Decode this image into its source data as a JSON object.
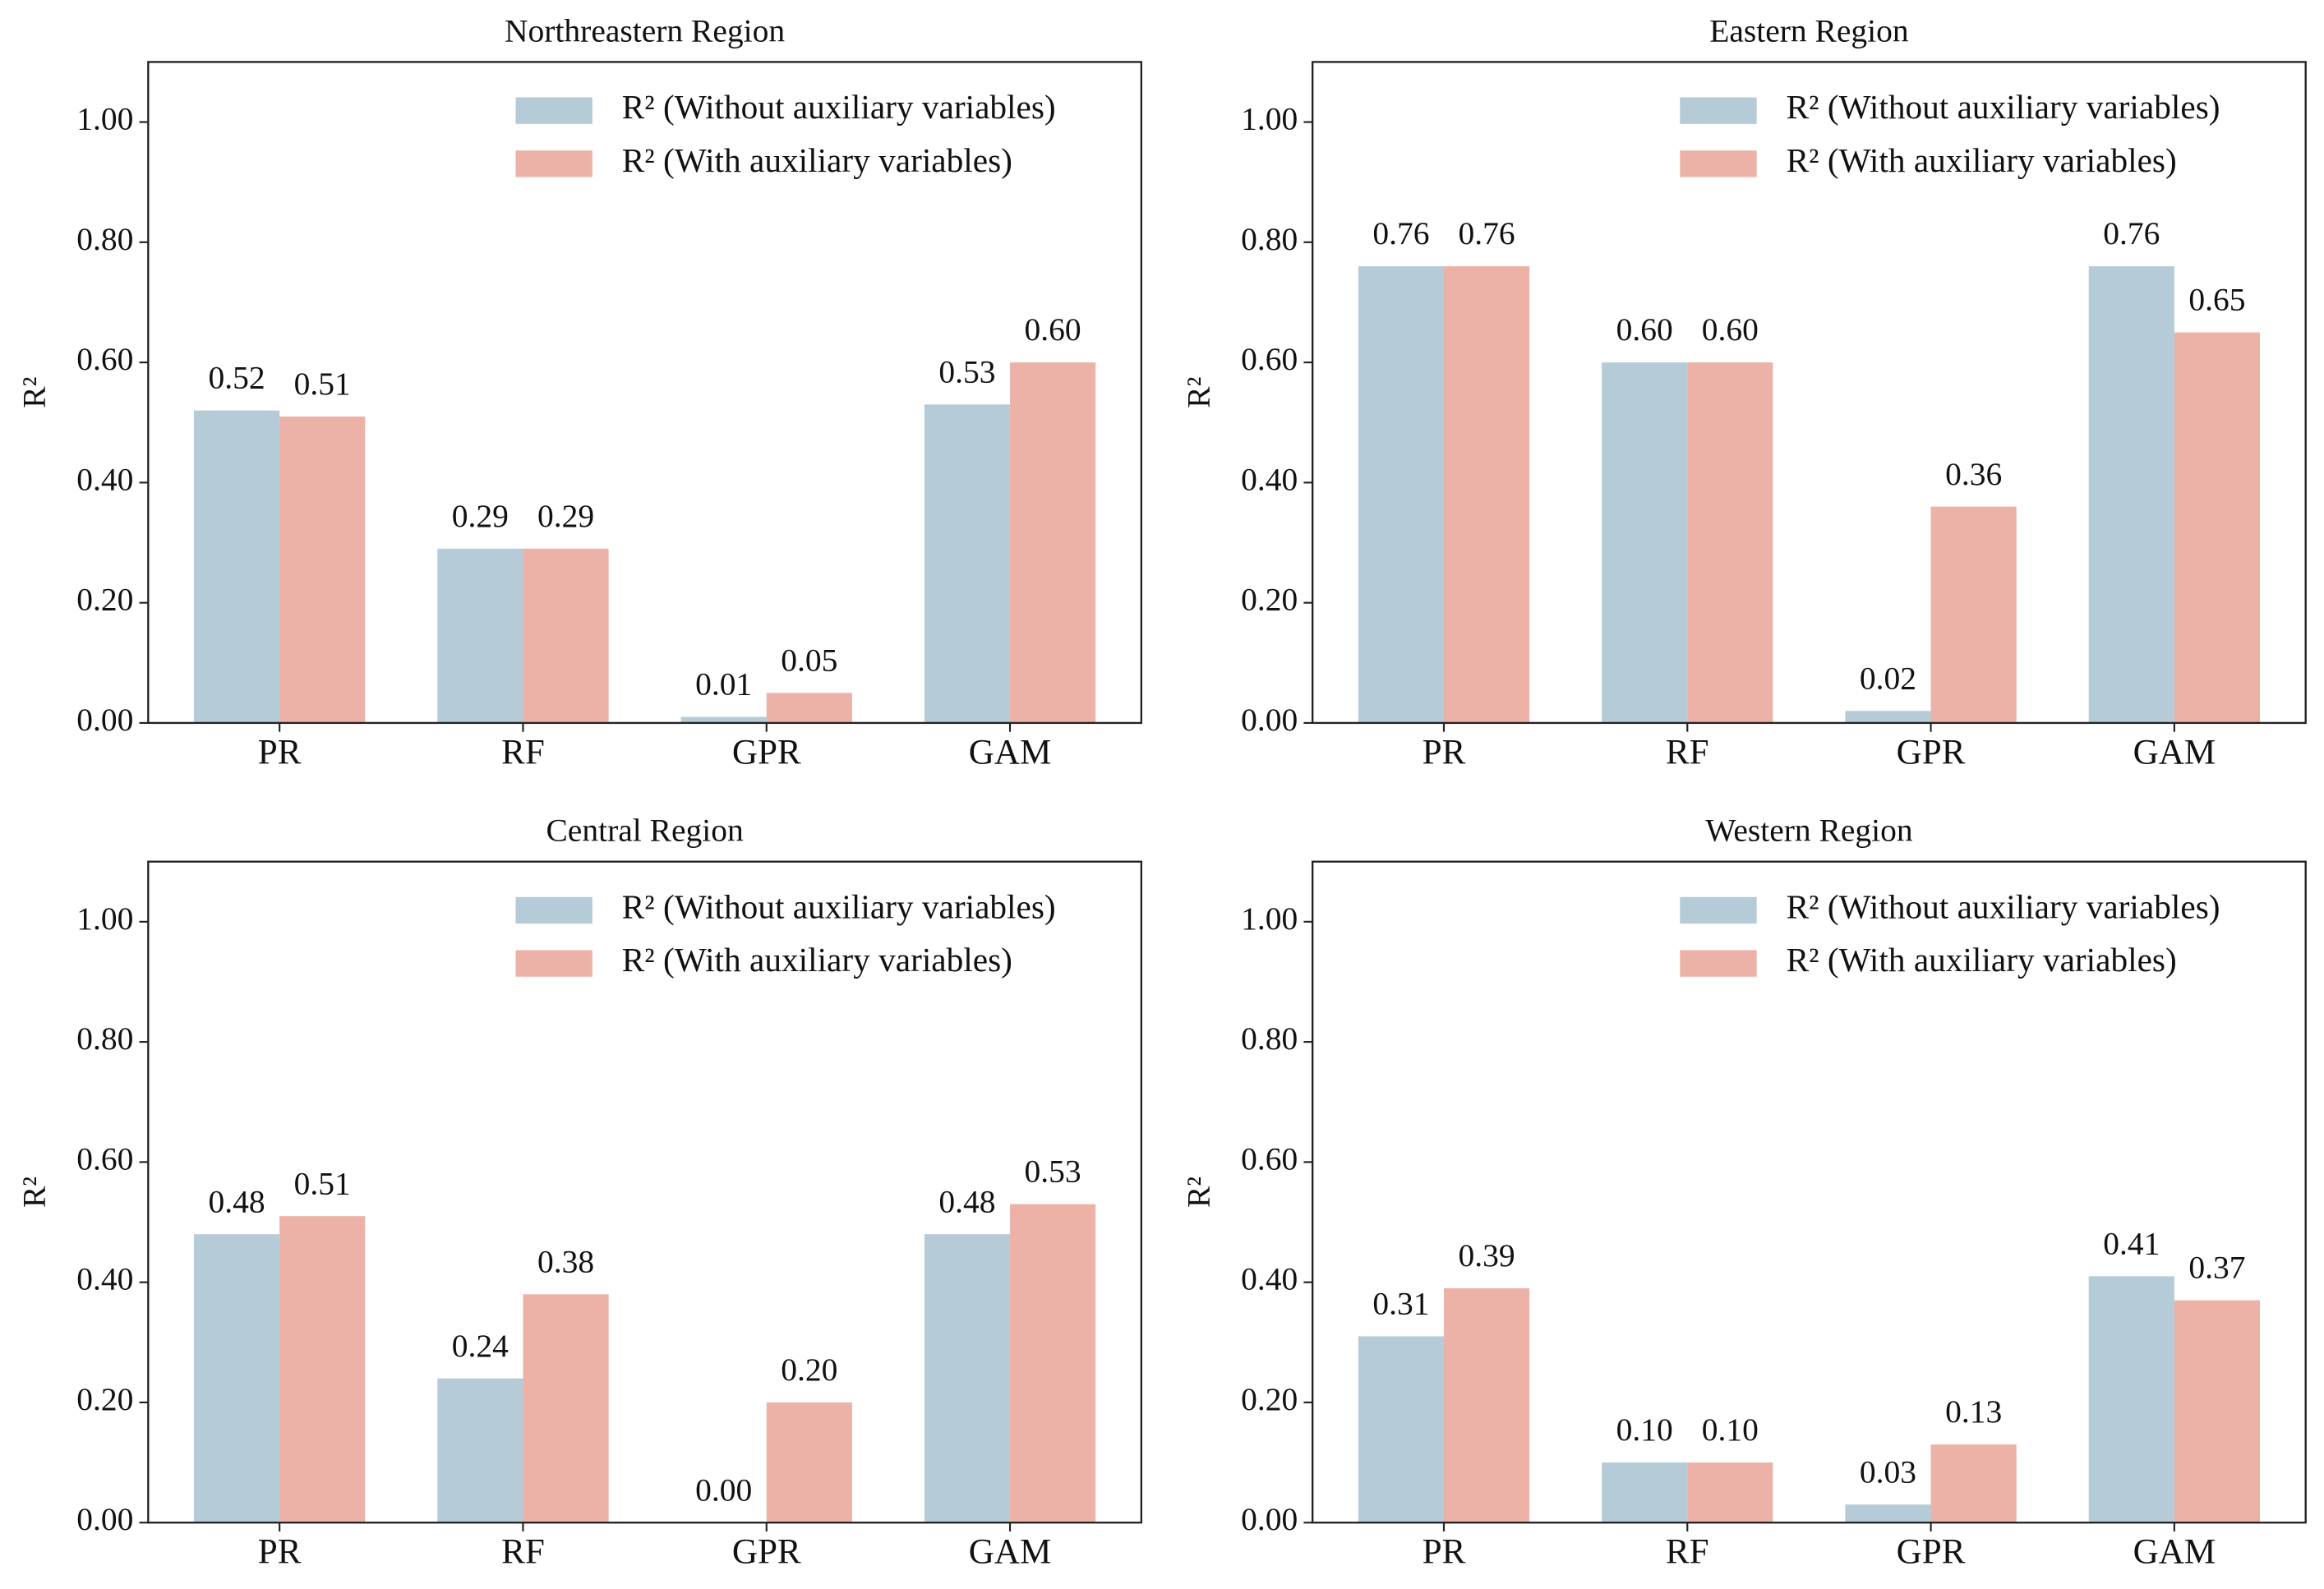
{
  "chart_data": [
    {
      "type": "bar",
      "title": "Northreastern Region",
      "y_label": "R²",
      "categories": [
        "PR",
        "RF",
        "GPR",
        "GAM"
      ],
      "series": [
        {
          "name": "R² (Without auxiliary variables)",
          "color": "#b5cbd7",
          "values": [
            0.52,
            0.29,
            0.01,
            0.53
          ],
          "value_labels": [
            "0.52",
            "0.29",
            "0.01",
            "0.53"
          ]
        },
        {
          "name": "R² (With auxiliary variables)",
          "color": "#ecb2a8",
          "values": [
            0.51,
            0.29,
            0.05,
            0.6
          ],
          "value_labels": [
            "0.51",
            "0.29",
            "0.05",
            "0.60"
          ]
        }
      ],
      "ylim": [
        0,
        1.1
      ],
      "yticks": [
        {
          "value": 0,
          "label": "0.00"
        },
        {
          "value": 0.2,
          "label": "0.20"
        },
        {
          "value": 0.4,
          "label": "0.40"
        },
        {
          "value": 0.6,
          "label": "0.60"
        },
        {
          "value": 0.8,
          "label": "0.80"
        },
        {
          "value": 1,
          "label": "1.00"
        }
      ],
      "legend": "upper right"
    },
    {
      "type": "bar",
      "title": "Eastern Region",
      "y_label": "R²",
      "categories": [
        "PR",
        "RF",
        "GPR",
        "GAM"
      ],
      "series": [
        {
          "name": "R² (Without auxiliary variables)",
          "color": "#b5cbd7",
          "values": [
            0.76,
            0.6,
            0.02,
            0.76
          ],
          "value_labels": [
            "0.76",
            "0.60",
            "0.02",
            "0.76"
          ]
        },
        {
          "name": "R² (With auxiliary variables)",
          "color": "#ecb2a8",
          "values": [
            0.76,
            0.6,
            0.36,
            0.65
          ],
          "value_labels": [
            "0.76",
            "0.60",
            "0.36",
            "0.65"
          ]
        }
      ],
      "ylim": [
        0,
        1.1
      ],
      "yticks": [
        {
          "value": 0,
          "label": "0.00"
        },
        {
          "value": 0.2,
          "label": "0.20"
        },
        {
          "value": 0.4,
          "label": "0.40"
        },
        {
          "value": 0.6,
          "label": "0.60"
        },
        {
          "value": 0.8,
          "label": "0.80"
        },
        {
          "value": 1,
          "label": "1.00"
        }
      ],
      "legend": "upper right"
    },
    {
      "type": "bar",
      "title": "Central Region",
      "y_label": "R²",
      "categories": [
        "PR",
        "RF",
        "GPR",
        "GAM"
      ],
      "series": [
        {
          "name": "R² (Without auxiliary variables)",
          "color": "#b5cbd7",
          "values": [
            0.48,
            0.24,
            0,
            0.48
          ],
          "value_labels": [
            "0.48",
            "0.24",
            "0.00",
            "0.48"
          ]
        },
        {
          "name": "R² (With auxiliary variables)",
          "color": "#ecb2a8",
          "values": [
            0.51,
            0.38,
            0.2,
            0.53
          ],
          "value_labels": [
            "0.51",
            "0.38",
            "0.20",
            "0.53"
          ]
        }
      ],
      "ylim": [
        0,
        1.1
      ],
      "yticks": [
        {
          "value": 0,
          "label": "0.00"
        },
        {
          "value": 0.2,
          "label": "0.20"
        },
        {
          "value": 0.4,
          "label": "0.40"
        },
        {
          "value": 0.6,
          "label": "0.60"
        },
        {
          "value": 0.8,
          "label": "0.80"
        },
        {
          "value": 1,
          "label": "1.00"
        }
      ],
      "legend": "upper right"
    },
    {
      "type": "bar",
      "title": "Western Region",
      "y_label": "R²",
      "categories": [
        "PR",
        "RF",
        "GPR",
        "GAM"
      ],
      "series": [
        {
          "name": "R² (Without auxiliary variables)",
          "color": "#b5cbd7",
          "values": [
            0.31,
            0.1,
            0.03,
            0.41
          ],
          "value_labels": [
            "0.31",
            "0.10",
            "0.03",
            "0.41"
          ]
        },
        {
          "name": "R² (With auxiliary variables)",
          "color": "#ecb2a8",
          "values": [
            0.39,
            0.1,
            0.13,
            0.37
          ],
          "value_labels": [
            "0.39",
            "0.10",
            "0.13",
            "0.37"
          ]
        }
      ],
      "ylim": [
        0,
        1.1
      ],
      "yticks": [
        {
          "value": 0,
          "label": "0.00"
        },
        {
          "value": 0.2,
          "label": "0.20"
        },
        {
          "value": 0.4,
          "label": "0.40"
        },
        {
          "value": 0.6,
          "label": "0.60"
        },
        {
          "value": 0.8,
          "label": "0.80"
        },
        {
          "value": 1,
          "label": "1.00"
        }
      ],
      "legend": "upper right"
    }
  ]
}
